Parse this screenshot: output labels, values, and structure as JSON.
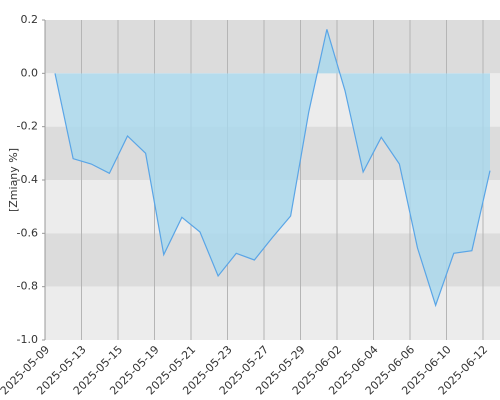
{
  "chart_data": {
    "type": "area",
    "y_label": "[Zmiany %]",
    "values": [
      0.0,
      -0.32,
      -0.34,
      -0.375,
      -0.235,
      -0.3,
      -0.68,
      -0.54,
      -0.595,
      -0.76,
      -0.675,
      -0.7,
      -0.615,
      -0.535,
      -0.145,
      0.165,
      -0.065,
      -0.37,
      -0.24,
      -0.34,
      -0.655,
      -0.87,
      -0.675,
      -0.665,
      -0.365
    ],
    "xticks": [
      "2025-05-09",
      "2025-05-13",
      "2025-05-15",
      "2025-05-19",
      "2025-05-21",
      "2025-05-23",
      "2025-05-27",
      "2025-05-29",
      "2025-06-02",
      "2025-06-04",
      "2025-06-06",
      "2025-06-10",
      "2025-06-12"
    ],
    "ylim": [
      -1.0,
      0.2
    ],
    "yticks": [
      0.2,
      {
        "value": 0,
        "label": "0.0"
      },
      -0.2,
      -0.4,
      -0.6,
      -0.8,
      {
        "value": -1,
        "label": "-1.0"
      }
    ],
    "color": "#5aa5e6",
    "fill": "#a8d8ee",
    "grid": true
  }
}
